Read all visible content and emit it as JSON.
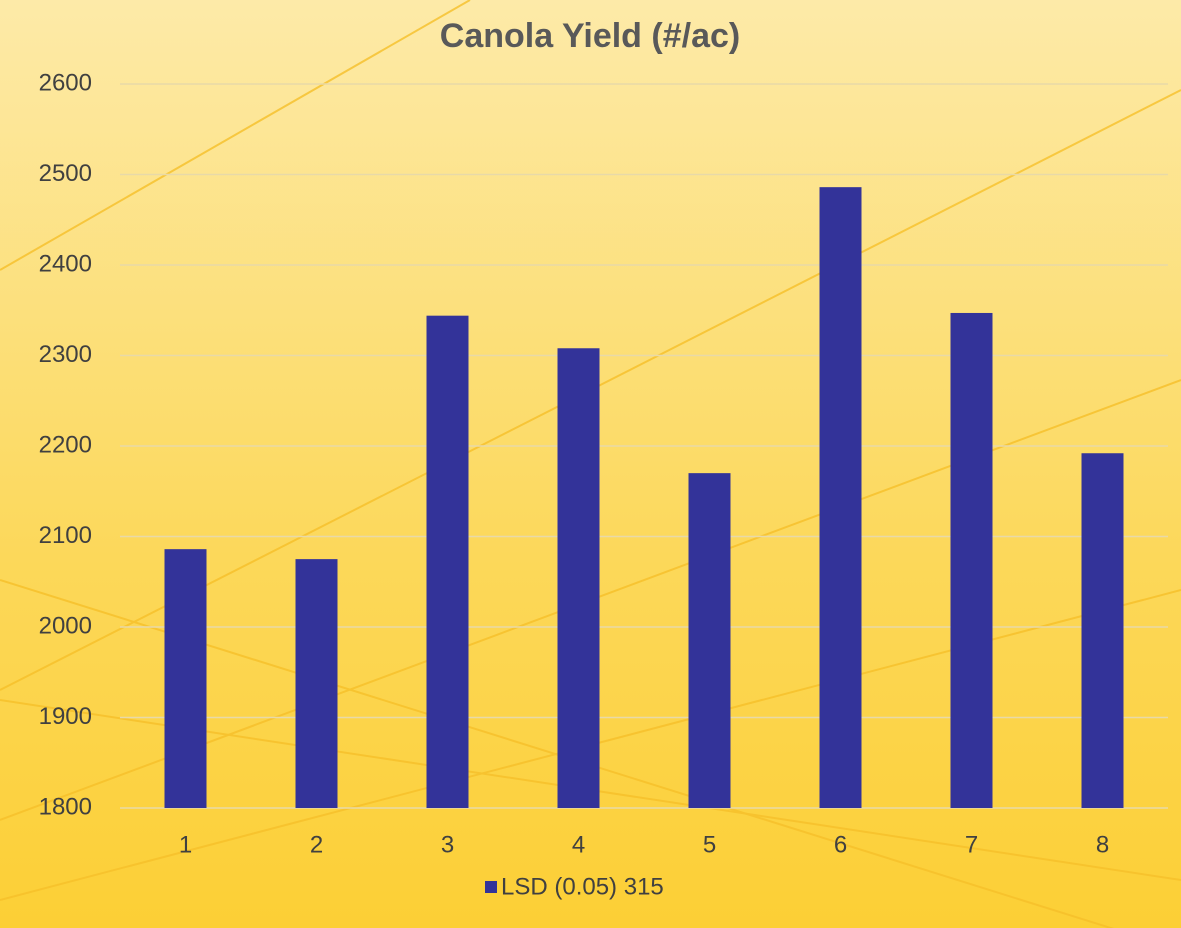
{
  "chart_data": {
    "type": "bar",
    "title": "Canola Yield (#/ac)",
    "categories": [
      "1",
      "2",
      "3",
      "4",
      "5",
      "6",
      "7",
      "8"
    ],
    "series": [
      {
        "name": "LSD (0.05) 315",
        "color": "#333399",
        "values": [
          2086,
          2075,
          2344,
          2308,
          2170,
          2486,
          2347,
          2192
        ]
      }
    ],
    "ylim": [
      1800,
      2600
    ],
    "yticks": [
      1800,
      1900,
      2000,
      2100,
      2200,
      2300,
      2400,
      2500,
      2600
    ],
    "grid": true,
    "legend": "bottom"
  }
}
